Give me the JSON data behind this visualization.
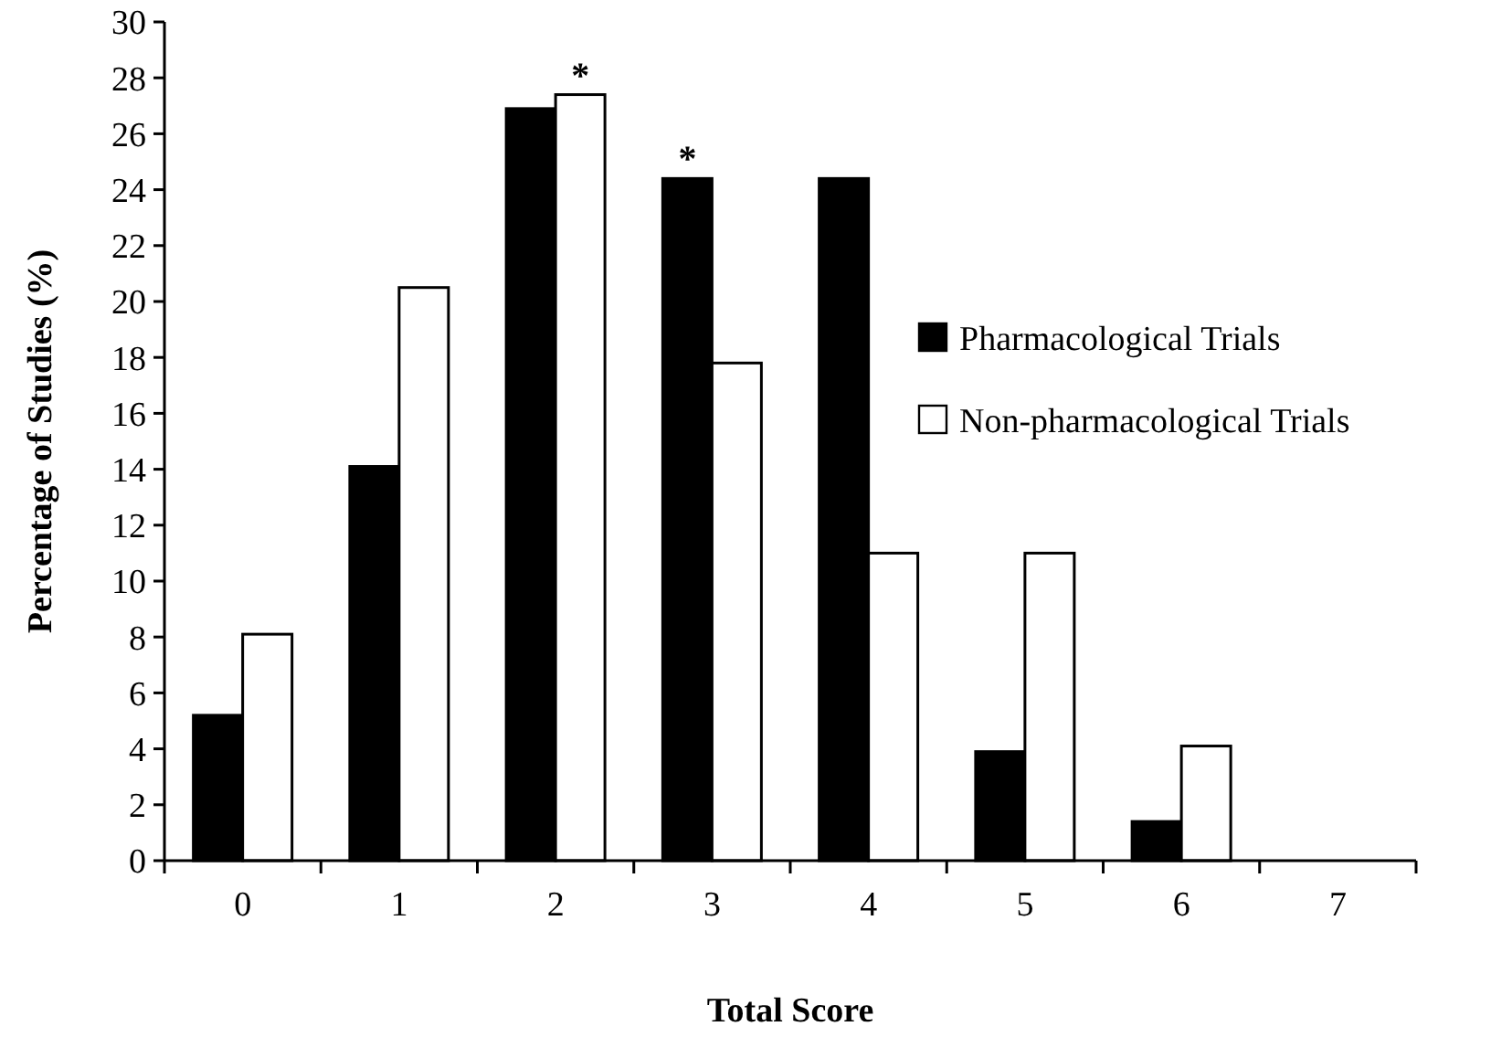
{
  "chart_data": {
    "type": "bar",
    "xlabel": "Total Score",
    "ylabel": "Percentage of Studies (%)",
    "categories": [
      "0",
      "1",
      "2",
      "3",
      "4",
      "5",
      "6",
      "7"
    ],
    "series": [
      {
        "name": "Pharmacological Trials",
        "color": "#000000",
        "values": [
          5.2,
          14.1,
          26.9,
          24.4,
          24.4,
          3.9,
          1.4,
          0
        ]
      },
      {
        "name": "Non-pharmacological Trials",
        "color": "#ffffff",
        "values": [
          8.1,
          20.5,
          27.4,
          17.8,
          11.0,
          11.0,
          4.1,
          0
        ]
      }
    ],
    "ylim": [
      0,
      30
    ],
    "yticks": [
      0,
      2,
      4,
      6,
      8,
      10,
      12,
      14,
      16,
      18,
      20,
      22,
      24,
      26,
      28,
      30
    ],
    "legend": "right",
    "grid": false,
    "annotations": [
      {
        "text": "*",
        "x": "2",
        "y": 27.4
      },
      {
        "text": "*",
        "x": "3",
        "y": 24.4
      }
    ]
  }
}
